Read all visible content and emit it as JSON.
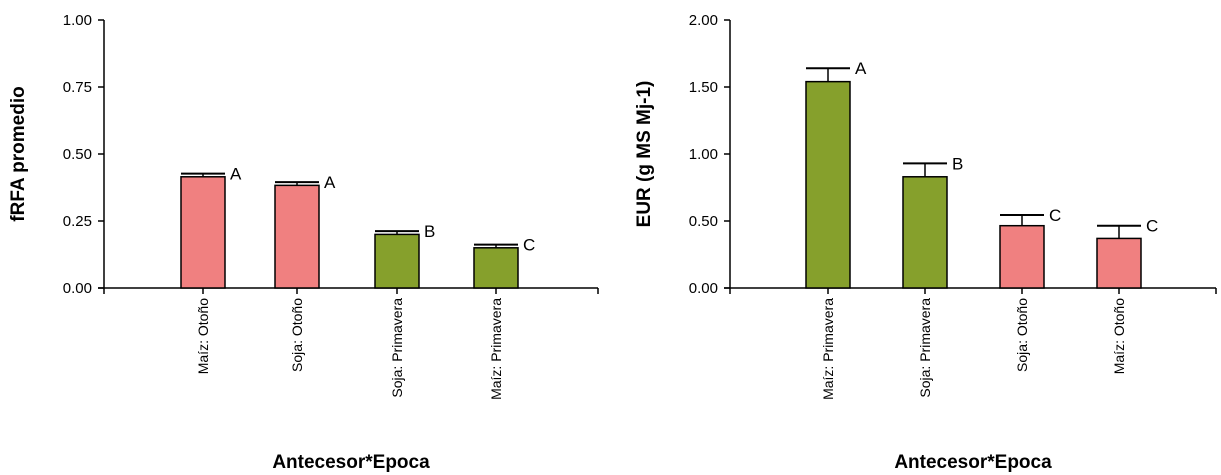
{
  "chart_data": [
    {
      "type": "bar",
      "xlabel": "Antecesor*Epoca",
      "ylabel": "fRFA promedio",
      "ylim": [
        0,
        1
      ],
      "yticks": [
        "0.00",
        "0.25",
        "0.50",
        "0.75",
        "1.00"
      ],
      "ytick_values": [
        0,
        0.25,
        0.5,
        0.75,
        1.0
      ],
      "categories": [
        "Maíz: Otoño",
        "Soja: Otoño",
        "Soja: Primavera",
        "Maíz: Primavera"
      ],
      "values": [
        0.415,
        0.383,
        0.2,
        0.15
      ],
      "errors": [
        0.012,
        0.012,
        0.012,
        0.012
      ],
      "significance": [
        "A",
        "A",
        "B",
        "C"
      ],
      "bar_colors": [
        "#f08080",
        "#f08080",
        "#86a02c",
        "#86a02c"
      ],
      "grid": false,
      "legend": "none"
    },
    {
      "type": "bar",
      "xlabel": "Antecesor*Epoca",
      "ylabel": "EUR (g MS Mj-1)",
      "ylim": [
        0,
        2
      ],
      "yticks": [
        "0.00",
        "0.50",
        "1.00",
        "1.50",
        "2.00"
      ],
      "ytick_values": [
        0,
        0.5,
        1.0,
        1.5,
        2.0
      ],
      "categories": [
        "Maíz: Primavera",
        "Soja: Primavera",
        "Soja: Otoño",
        "Maíz: Otoño"
      ],
      "values": [
        1.54,
        0.83,
        0.465,
        0.37
      ],
      "errors": [
        0.1,
        0.1,
        0.08,
        0.095
      ],
      "significance": [
        "A",
        "B",
        "C",
        "C"
      ],
      "bar_colors": [
        "#86a02c",
        "#86a02c",
        "#f08080",
        "#f08080"
      ],
      "grid": false,
      "legend": "none"
    }
  ]
}
